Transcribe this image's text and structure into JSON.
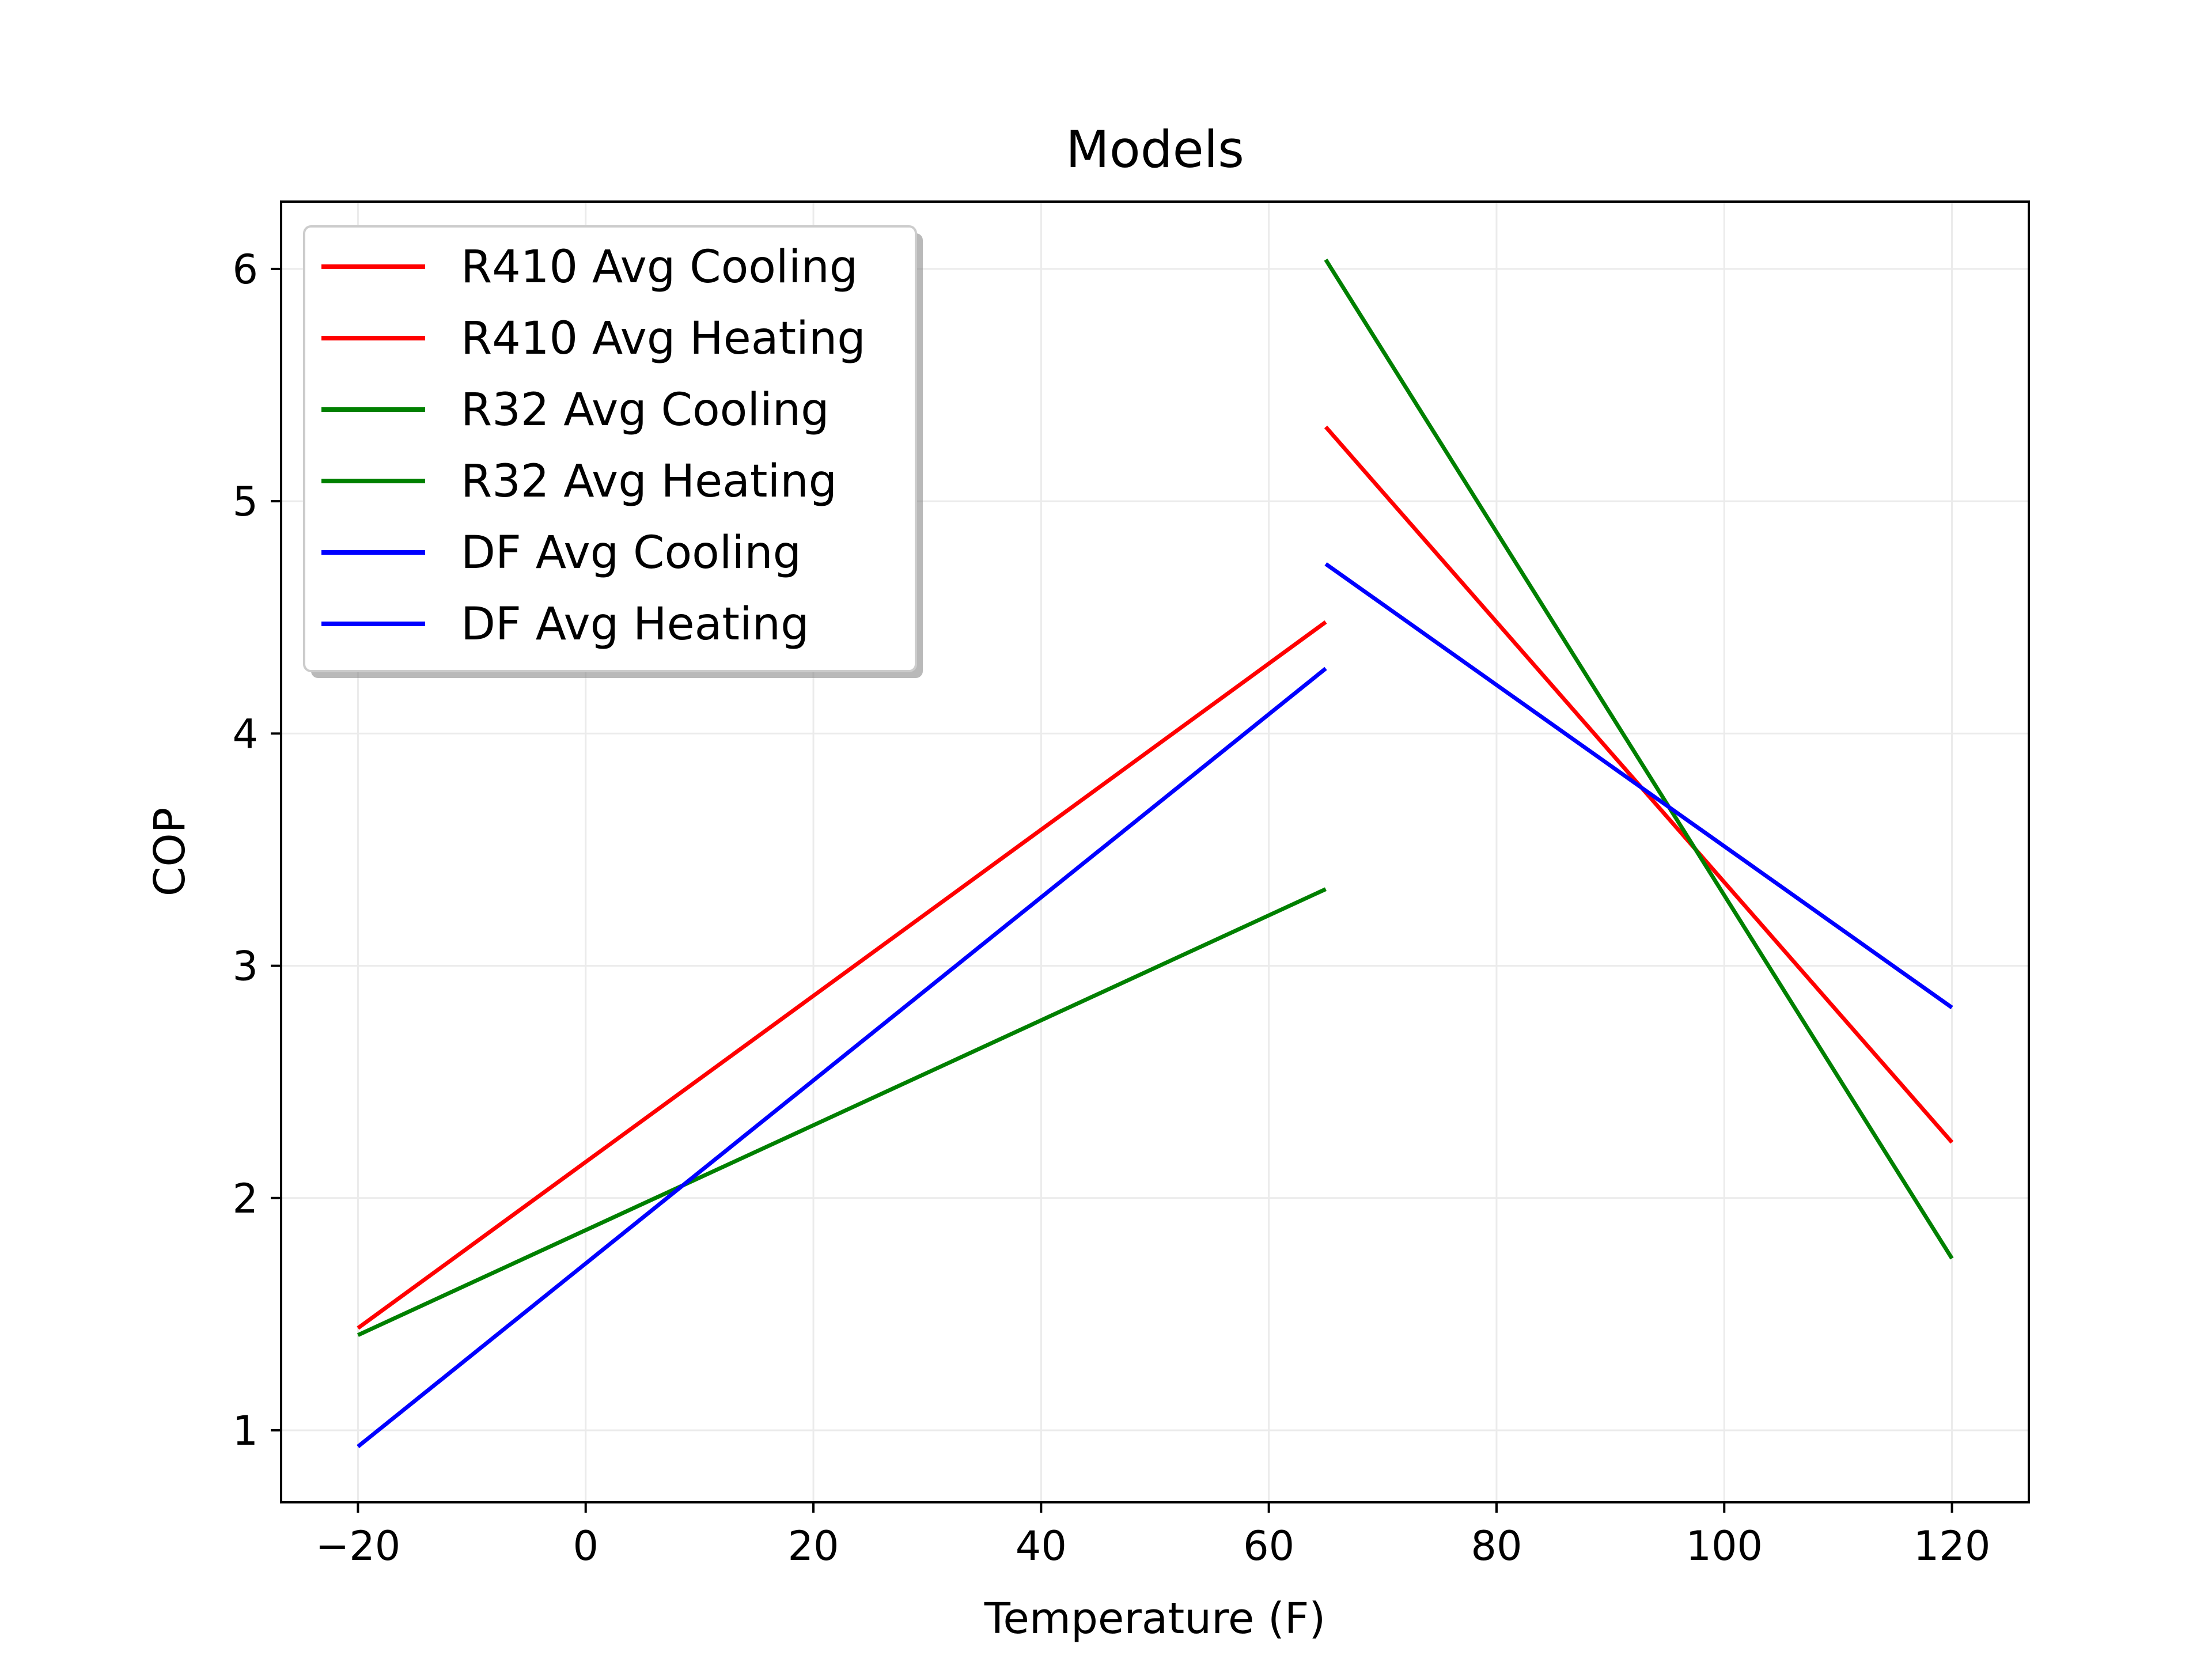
{
  "chart_data": {
    "type": "line",
    "title": "Models",
    "xlabel": "Temperature (F)",
    "ylabel": "COP",
    "xlim": [
      -26.75,
      126.75
    ],
    "ylim": [
      0.69,
      6.29
    ],
    "xticks": [
      -20,
      0,
      20,
      40,
      60,
      80,
      100,
      120
    ],
    "xtick_labels": [
      "−20",
      "0",
      "20",
      "40",
      "60",
      "80",
      "100",
      "120"
    ],
    "yticks": [
      1,
      2,
      3,
      4,
      5,
      6
    ],
    "ytick_labels": [
      "1",
      "2",
      "3",
      "4",
      "5",
      "6"
    ],
    "grid": true,
    "legend_position": "top-left",
    "series": [
      {
        "name": "R410 Avg Cooling",
        "color": "#ff0000",
        "x": [
          65,
          120
        ],
        "y": [
          5.32,
          2.24
        ]
      },
      {
        "name": "R410 Avg Heating",
        "color": "#ff0000",
        "x": [
          -20,
          65
        ],
        "y": [
          1.44,
          4.48
        ]
      },
      {
        "name": "R32 Avg Cooling",
        "color": "#008000",
        "x": [
          65,
          120
        ],
        "y": [
          6.04,
          1.74
        ]
      },
      {
        "name": "R32 Avg Heating",
        "color": "#008000",
        "x": [
          -20,
          65
        ],
        "y": [
          1.41,
          3.33
        ]
      },
      {
        "name": "DF Avg Cooling",
        "color": "#0000ff",
        "x": [
          65,
          120
        ],
        "y": [
          4.73,
          2.82
        ]
      },
      {
        "name": "DF Avg Heating",
        "color": "#0000ff",
        "x": [
          -20,
          65
        ],
        "y": [
          0.93,
          4.28
        ]
      }
    ]
  }
}
